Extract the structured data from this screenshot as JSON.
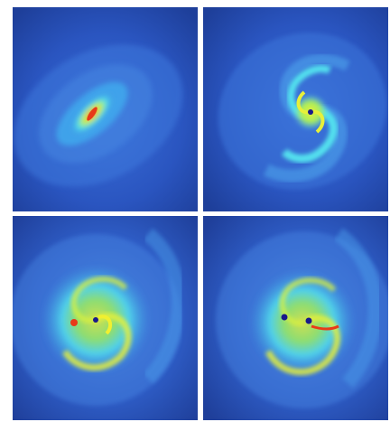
{
  "figure": {
    "panels": [
      {
        "id": "panel-1",
        "stage": 1
      },
      {
        "id": "panel-2",
        "stage": 2
      },
      {
        "id": "panel-3",
        "stage": 3
      },
      {
        "id": "panel-4",
        "stage": 4
      }
    ],
    "colormap": {
      "background": "#1f3f9c",
      "low": "#2d5fd0",
      "mid": "#3fb0f0",
      "cyan": "#52e0ee",
      "high": "#e6f03a",
      "peak": "#e83a18",
      "core": "#1a1a8a"
    }
  }
}
